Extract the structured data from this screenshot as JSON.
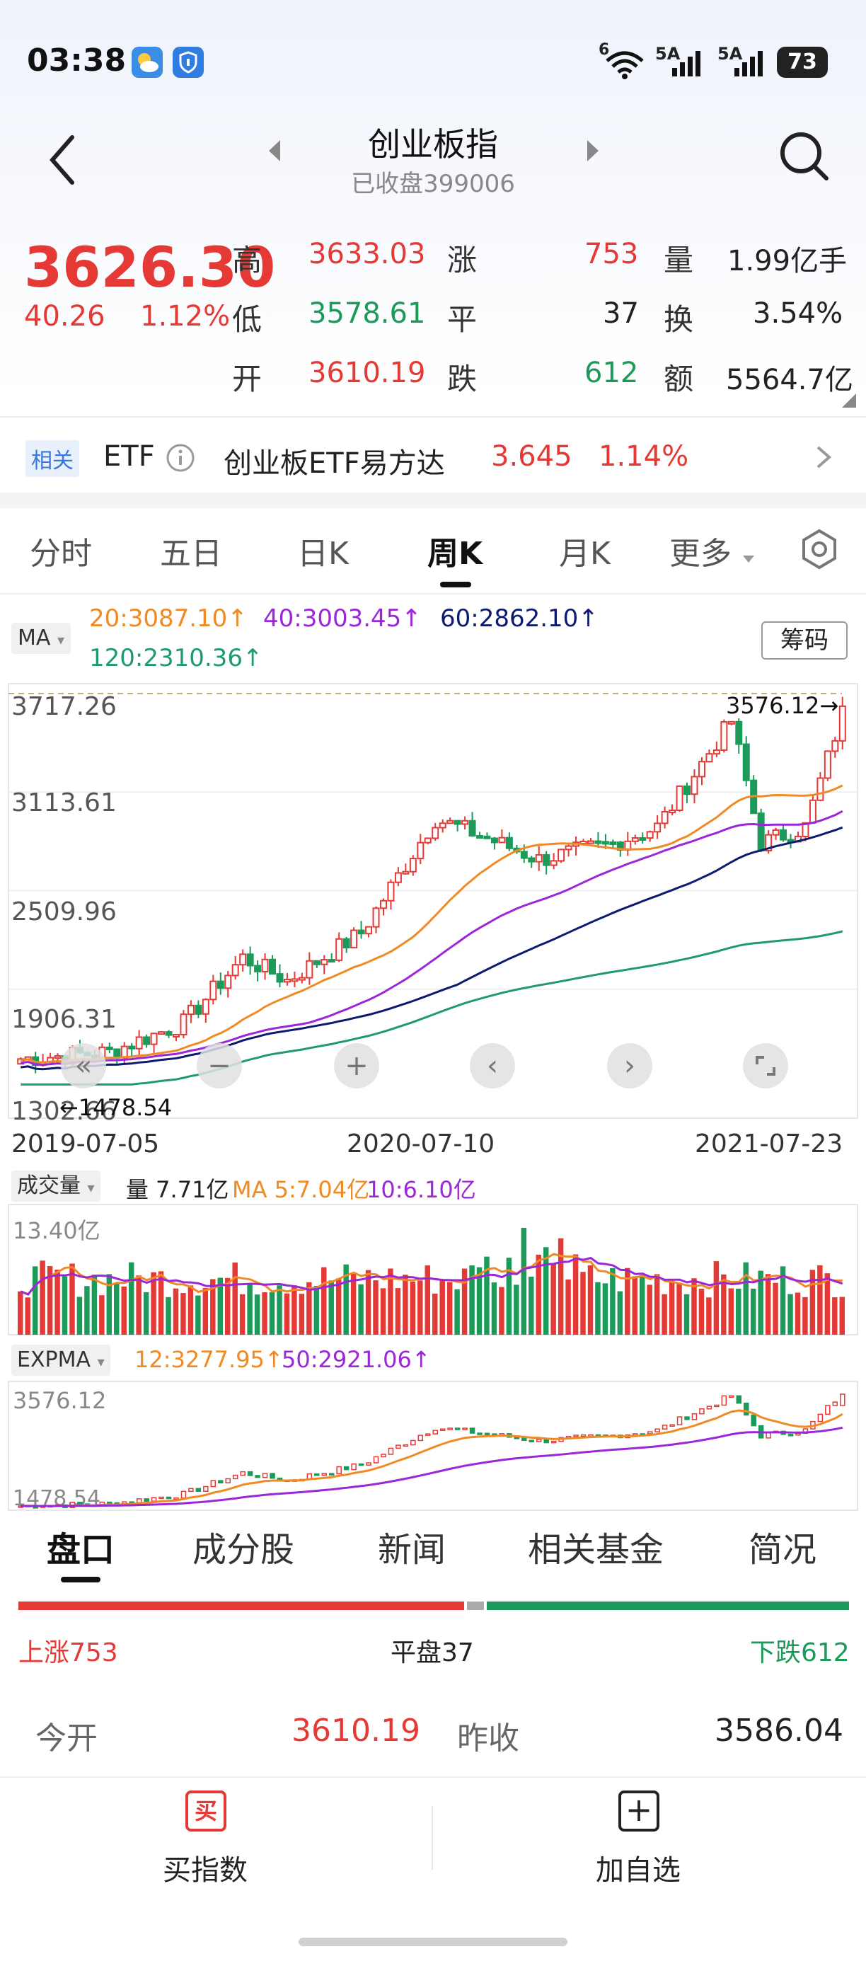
{
  "status_bar": {
    "time": "03:38",
    "signal1": "5A",
    "signal2": "5A",
    "wifi": "6",
    "battery": "73"
  },
  "header": {
    "title": "创业板指",
    "subtitle": "已收盘399006"
  },
  "quote": {
    "price": "3626.30",
    "change": "40.26",
    "change_pct": "1.12%",
    "high_label": "高",
    "high": "3633.03",
    "low_label": "低",
    "low": "3578.61",
    "open_label": "开",
    "open": "3610.19",
    "up_label": "涨",
    "up": "753",
    "flat_label": "平",
    "flat": "37",
    "down_label": "跌",
    "down": "612",
    "vol_label": "量",
    "vol": "1.99亿手",
    "turnover_label": "换",
    "turnover": "3.54%",
    "amount_label": "额",
    "amount": "5564.7亿"
  },
  "related": {
    "tag": "相关",
    "type": "ETF",
    "name": "创业板ETF易方达",
    "price": "3.645",
    "pct": "1.14%"
  },
  "tabs": [
    "分时",
    "五日",
    "日K",
    "周K",
    "月K",
    "更多"
  ],
  "ma": {
    "button": "MA",
    "ma20": "20:3087.10↑",
    "ma40": "40:3003.45↑",
    "ma60": "60:2862.10↑",
    "ma120": "120:2310.36↑",
    "chip_button": "筹码"
  },
  "kline": {
    "y_ticks": [
      "3717.26",
      "3113.61",
      "2509.96",
      "1906.31",
      "1302.66"
    ],
    "max_label": "3576.12→",
    "min_label": "←1478.54",
    "dates": [
      "2019-07-05",
      "2020-07-10",
      "2021-07-23"
    ]
  },
  "volume": {
    "button": "成交量",
    "vol": "量 7.71亿",
    "ma5": "MA 5:7.04亿",
    "ma10": "10:6.10亿",
    "y_top": "13.40亿"
  },
  "expma": {
    "button": "EXPMA",
    "e12": "12:3277.95↑",
    "e50": "50:2921.06↑",
    "y_top": "3576.12",
    "y_bottom": "1478.54"
  },
  "bottom_tabs": [
    "盘口",
    "成分股",
    "新闻",
    "相关基金",
    "简况"
  ],
  "breadth": {
    "up": "上涨753",
    "flat": "平盘37",
    "down": "下跌612"
  },
  "open_close": {
    "open_label": "今开",
    "open": "3610.19",
    "prev_label": "昨收",
    "prev": "3586.04"
  },
  "actions": {
    "buy_icon": "买",
    "buy": "买指数",
    "add_icon": "+",
    "add": "加自选"
  },
  "colors": {
    "up": "#e53935",
    "down": "#1b9a5a",
    "ma20": "#f08a24",
    "ma40": "#9b27d8",
    "ma60": "#0d1b6e",
    "ma120": "#1f9a70"
  }
}
